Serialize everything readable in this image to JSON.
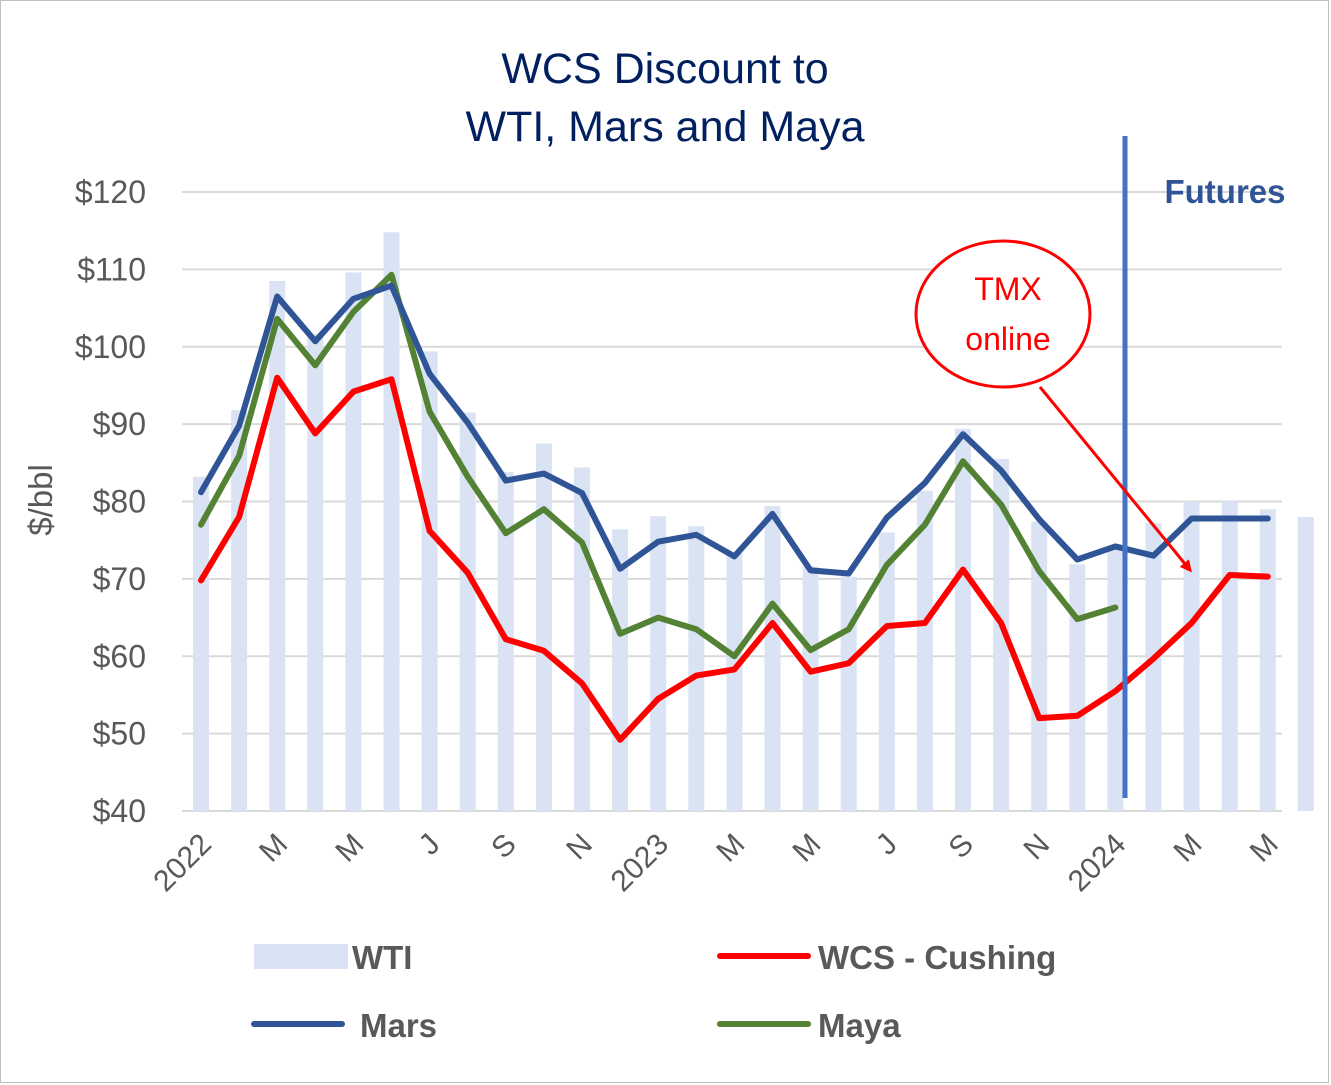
{
  "chart_data": {
    "type": "bar+line",
    "title_lines": [
      "WCS Discount to",
      "WTI, Mars and Maya"
    ],
    "ylabel": "$/bbl",
    "xlabel": "",
    "ylim": [
      40,
      120
    ],
    "y_ticks": [
      40,
      50,
      60,
      70,
      80,
      90,
      100,
      110,
      120
    ],
    "y_tick_labels": [
      "$40",
      "$50",
      "$60",
      "$70",
      "$80",
      "$90",
      "$100",
      "$110",
      "$120"
    ],
    "grid": "horizontal",
    "x": [
      "2022-01",
      "2022-02",
      "2022-03",
      "2022-04",
      "2022-05",
      "2022-06",
      "2022-07",
      "2022-08",
      "2022-09",
      "2022-10",
      "2022-11",
      "2022-12",
      "2023-01",
      "2023-02",
      "2023-03",
      "2023-04",
      "2023-05",
      "2023-06",
      "2023-07",
      "2023-08",
      "2023-09",
      "2023-10",
      "2023-11",
      "2023-12",
      "2024-01",
      "2024-02",
      "2024-03",
      "2024-04",
      "2024-05",
      "2024-06"
    ],
    "x_tick_labels": [
      "2022",
      "",
      "M",
      "",
      "M",
      "",
      "J",
      "",
      "S",
      "",
      "N",
      "",
      "2023",
      "",
      "M",
      "",
      "M",
      "",
      "J",
      "",
      "S",
      "",
      "N",
      "",
      "2024",
      "",
      "M",
      "",
      "M",
      ""
    ],
    "series": [
      {
        "name": "WTI",
        "kind": "bar",
        "color": "#dae3f3",
        "values": [
          83.2,
          91.8,
          108.5,
          101.6,
          109.6,
          114.8,
          99.4,
          91.5,
          83.8,
          87.5,
          84.4,
          76.4,
          78.1,
          76.8,
          73.3,
          79.4,
          71.6,
          70.3,
          76.0,
          81.4,
          89.4,
          85.5,
          77.4,
          71.9,
          74.1,
          77.2,
          80.0,
          80.0,
          79.0,
          78.0
        ]
      },
      {
        "name": "WCS - Cushing",
        "kind": "line",
        "color": "#ff0000",
        "values": [
          69.8,
          78.0,
          96.0,
          88.8,
          94.2,
          95.8,
          76.2,
          70.8,
          62.2,
          60.7,
          56.5,
          49.2,
          54.5,
          57.5,
          58.3,
          64.3,
          58.0,
          59.1,
          63.9,
          64.3,
          71.2,
          64.3,
          52.0,
          52.3,
          55.5,
          59.7,
          64.3,
          70.5,
          70.3,
          null
        ]
      },
      {
        "name": "Mars",
        "kind": "line",
        "color": "#2f5597",
        "values": [
          81.2,
          89.8,
          106.5,
          100.7,
          106.2,
          107.9,
          96.5,
          90.2,
          82.7,
          83.6,
          81.1,
          71.3,
          74.8,
          75.7,
          72.9,
          78.4,
          71.1,
          70.7,
          77.9,
          82.4,
          88.7,
          84.0,
          77.7,
          72.5,
          74.2,
          73.0,
          77.8,
          77.8,
          77.8,
          null
        ]
      },
      {
        "name": "Maya",
        "kind": "line",
        "color": "#548235",
        "values": [
          77.0,
          85.9,
          103.6,
          97.6,
          104.5,
          109.3,
          91.6,
          83.2,
          75.9,
          79.0,
          74.7,
          62.9,
          65.0,
          63.5,
          60.0,
          66.8,
          60.8,
          63.5,
          71.8,
          77.0,
          85.2,
          79.6,
          71.0,
          64.8,
          66.3,
          null,
          null,
          null,
          null,
          null
        ]
      }
    ],
    "annotations": [
      {
        "text": "Futures",
        "type": "vertical-line",
        "color": "#4472c4",
        "at_x": "between 2024-01 and 2024-02"
      },
      {
        "text_lines": [
          "TMX",
          "online"
        ],
        "type": "callout-ellipse-arrow",
        "color": "#ff0000",
        "points_to_x": "2024-03"
      }
    ],
    "legend": {
      "position": "bottom",
      "entries": [
        "WTI",
        "WCS - Cushing",
        "Mars",
        "Maya"
      ]
    }
  }
}
